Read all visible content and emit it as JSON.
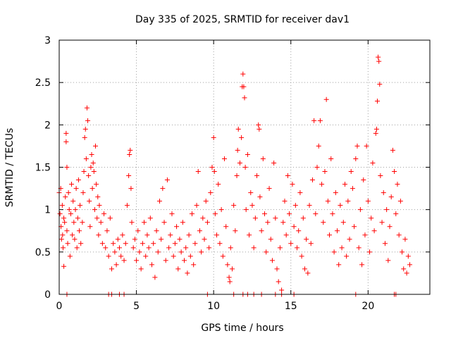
{
  "chart_data": {
    "type": "scatter",
    "title": "Day 335 of 2025, SRMTID for receiver dav1",
    "xlabel": "GPS time / hours",
    "ylabel": "SRMTID / TECUs",
    "xlim": [
      0,
      24
    ],
    "ylim": [
      0,
      3
    ],
    "x_ticks": [
      "0",
      "5",
      "10",
      "15",
      "20"
    ],
    "y_ticks": [
      "0",
      "0.5",
      "1",
      "1.5",
      "2",
      "2.5",
      "3"
    ],
    "grid": true,
    "marker": "+",
    "series_color": "#ff0000",
    "series": [
      {
        "name": "SRMTID",
        "points": [
          [
            0.0,
            1.2
          ],
          [
            0.05,
            0.95
          ],
          [
            0.1,
            1.25
          ],
          [
            0.12,
            0.8
          ],
          [
            0.15,
            0.65
          ],
          [
            0.2,
            1.05
          ],
          [
            0.22,
            0.7
          ],
          [
            0.25,
            0.55
          ],
          [
            0.3,
            0.9
          ],
          [
            0.3,
            0.33
          ],
          [
            0.35,
            0.85
          ],
          [
            0.4,
            1.15
          ],
          [
            0.45,
            1.9
          ],
          [
            0.45,
            1.8
          ],
          [
            0.5,
            1.5
          ],
          [
            0.5,
            0.75
          ],
          [
            0.55,
            0.6
          ],
          [
            0.6,
            1.2
          ],
          [
            0.65,
            1.0
          ],
          [
            0.7,
            0.45
          ],
          [
            0.75,
            0.95
          ],
          [
            0.8,
            1.3
          ],
          [
            0.85,
            0.7
          ],
          [
            0.9,
            1.1
          ],
          [
            0.95,
            0.85
          ],
          [
            1.0,
            0.65
          ],
          [
            1.05,
            1.0
          ],
          [
            1.1,
            1.25
          ],
          [
            1.15,
            0.55
          ],
          [
            1.2,
            0.9
          ],
          [
            1.25,
            1.35
          ],
          [
            1.3,
            0.75
          ],
          [
            1.35,
            1.05
          ],
          [
            1.4,
            0.6
          ],
          [
            1.5,
            0.85
          ],
          [
            1.55,
            1.2
          ],
          [
            1.6,
            1.45
          ],
          [
            1.65,
            1.85
          ],
          [
            1.7,
            1.95
          ],
          [
            1.75,
            1.6
          ],
          [
            1.8,
            2.2
          ],
          [
            1.85,
            2.05
          ],
          [
            1.9,
            1.4
          ],
          [
            1.95,
            1.1
          ],
          [
            2.0,
            0.8
          ],
          [
            2.05,
            1.5
          ],
          [
            2.1,
            1.65
          ],
          [
            2.15,
            1.25
          ],
          [
            2.2,
            1.55
          ],
          [
            2.25,
            1.45
          ],
          [
            2.3,
            1.0
          ],
          [
            2.35,
            1.75
          ],
          [
            2.4,
            1.3
          ],
          [
            2.45,
            0.9
          ],
          [
            2.5,
            1.15
          ],
          [
            2.55,
            0.7
          ],
          [
            2.6,
            1.05
          ],
          [
            2.7,
            0.85
          ],
          [
            2.8,
            0.6
          ],
          [
            2.9,
            0.95
          ],
          [
            3.0,
            0.55
          ],
          [
            3.1,
            0.75
          ],
          [
            3.2,
            0.45
          ],
          [
            3.3,
            0.9
          ],
          [
            3.4,
            0.3
          ],
          [
            3.5,
            0.6
          ],
          [
            3.6,
            0.5
          ],
          [
            3.7,
            0.35
          ],
          [
            3.8,
            0.65
          ],
          [
            3.9,
            0.55
          ],
          [
            4.0,
            0.45
          ],
          [
            4.1,
            0.7
          ],
          [
            4.2,
            0.4
          ],
          [
            4.3,
            0.6
          ],
          [
            4.4,
            1.05
          ],
          [
            4.5,
            1.4
          ],
          [
            4.55,
            1.65
          ],
          [
            4.6,
            1.7
          ],
          [
            4.65,
            1.25
          ],
          [
            4.7,
            0.85
          ],
          [
            4.8,
            0.55
          ],
          [
            4.9,
            0.65
          ],
          [
            5.0,
            0.4
          ],
          [
            5.1,
            0.75
          ],
          [
            5.2,
            0.5
          ],
          [
            5.3,
            0.3
          ],
          [
            5.4,
            0.6
          ],
          [
            5.5,
            0.85
          ],
          [
            5.6,
            0.45
          ],
          [
            5.7,
            0.7
          ],
          [
            5.8,
            0.55
          ],
          [
            5.9,
            0.9
          ],
          [
            6.0,
            0.35
          ],
          [
            6.1,
            0.6
          ],
          [
            6.2,
            0.2
          ],
          [
            6.3,
            0.75
          ],
          [
            6.4,
            0.5
          ],
          [
            6.5,
            1.1
          ],
          [
            6.6,
            0.65
          ],
          [
            6.7,
            1.25
          ],
          [
            6.8,
            0.85
          ],
          [
            6.9,
            0.4
          ],
          [
            7.0,
            1.35
          ],
          [
            7.1,
            0.55
          ],
          [
            7.2,
            0.7
          ],
          [
            7.3,
            0.95
          ],
          [
            7.4,
            0.45
          ],
          [
            7.5,
            0.6
          ],
          [
            7.6,
            0.8
          ],
          [
            7.7,
            0.3
          ],
          [
            7.8,
            0.65
          ],
          [
            7.9,
            0.5
          ],
          [
            8.0,
            0.85
          ],
          [
            8.1,
            0.4
          ],
          [
            8.2,
            0.55
          ],
          [
            8.3,
            0.25
          ],
          [
            8.4,
            0.7
          ],
          [
            8.5,
            0.45
          ],
          [
            8.6,
            0.95
          ],
          [
            8.7,
            0.35
          ],
          [
            8.8,
            0.6
          ],
          [
            8.9,
            1.05
          ],
          [
            9.0,
            1.45
          ],
          [
            9.1,
            0.75
          ],
          [
            9.2,
            0.5
          ],
          [
            9.3,
            0.9
          ],
          [
            9.4,
            0.65
          ],
          [
            9.5,
            1.1
          ],
          [
            9.6,
            0.85
          ],
          [
            9.7,
            0.55
          ],
          [
            9.8,
            1.2
          ],
          [
            9.9,
            1.5
          ],
          [
            10.0,
            1.85
          ],
          [
            10.05,
            1.45
          ],
          [
            10.1,
            0.95
          ],
          [
            10.2,
            0.7
          ],
          [
            10.3,
            1.3
          ],
          [
            10.4,
            0.6
          ],
          [
            10.5,
            1.0
          ],
          [
            10.6,
            0.45
          ],
          [
            10.7,
            1.6
          ],
          [
            10.8,
            0.8
          ],
          [
            10.9,
            0.35
          ],
          [
            11.0,
            0.2
          ],
          [
            11.05,
            0.15
          ],
          [
            11.1,
            0.55
          ],
          [
            11.2,
            0.3
          ],
          [
            11.3,
            1.05
          ],
          [
            11.4,
            0.75
          ],
          [
            11.5,
            1.4
          ],
          [
            11.55,
            1.7
          ],
          [
            11.6,
            1.95
          ],
          [
            11.7,
            1.55
          ],
          [
            11.8,
            1.85
          ],
          [
            11.85,
            2.45
          ],
          [
            11.9,
            2.6
          ],
          [
            11.95,
            2.45
          ],
          [
            12.0,
            2.32
          ],
          [
            12.05,
            1.5
          ],
          [
            12.1,
            1.0
          ],
          [
            12.2,
            1.65
          ],
          [
            12.3,
            0.7
          ],
          [
            12.4,
            1.2
          ],
          [
            12.5,
            1.05
          ],
          [
            12.6,
            0.55
          ],
          [
            12.7,
            0.9
          ],
          [
            12.8,
            1.4
          ],
          [
            12.9,
            2.0
          ],
          [
            12.95,
            1.95
          ],
          [
            13.0,
            1.15
          ],
          [
            13.1,
            0.75
          ],
          [
            13.2,
            1.6
          ],
          [
            13.3,
            0.95
          ],
          [
            13.4,
            0.5
          ],
          [
            13.5,
            0.85
          ],
          [
            13.6,
            1.25
          ],
          [
            13.7,
            0.65
          ],
          [
            13.8,
            0.4
          ],
          [
            13.9,
            1.55
          ],
          [
            14.0,
            0.9
          ],
          [
            14.1,
            0.3
          ],
          [
            14.2,
            0.15
          ],
          [
            14.3,
            0.55
          ],
          [
            14.4,
            0.05
          ],
          [
            14.5,
            0.85
          ],
          [
            14.6,
            1.1
          ],
          [
            14.7,
            0.7
          ],
          [
            14.8,
            1.4
          ],
          [
            14.9,
            0.95
          ],
          [
            15.0,
            0.6
          ],
          [
            15.1,
            1.3
          ],
          [
            15.2,
            0.8
          ],
          [
            15.3,
            1.05
          ],
          [
            15.4,
            0.55
          ],
          [
            15.5,
            0.75
          ],
          [
            15.6,
            1.2
          ],
          [
            15.7,
            0.45
          ],
          [
            15.8,
            0.9
          ],
          [
            15.9,
            0.3
          ],
          [
            16.0,
            0.65
          ],
          [
            16.1,
            0.25
          ],
          [
            16.2,
            1.05
          ],
          [
            16.3,
            0.6
          ],
          [
            16.4,
            1.35
          ],
          [
            16.5,
            2.05
          ],
          [
            16.6,
            0.95
          ],
          [
            16.7,
            1.5
          ],
          [
            16.8,
            1.75
          ],
          [
            16.9,
            2.05
          ],
          [
            17.0,
            1.3
          ],
          [
            17.1,
            0.85
          ],
          [
            17.2,
            1.45
          ],
          [
            17.3,
            2.3
          ],
          [
            17.4,
            1.1
          ],
          [
            17.5,
            0.7
          ],
          [
            17.6,
            1.6
          ],
          [
            17.7,
            0.95
          ],
          [
            17.8,
            0.5
          ],
          [
            17.9,
            1.2
          ],
          [
            18.0,
            0.75
          ],
          [
            18.1,
            0.35
          ],
          [
            18.2,
            1.05
          ],
          [
            18.3,
            0.55
          ],
          [
            18.4,
            0.85
          ],
          [
            18.5,
            1.3
          ],
          [
            18.6,
            0.45
          ],
          [
            18.7,
            1.1
          ],
          [
            18.8,
            0.65
          ],
          [
            18.9,
            1.45
          ],
          [
            19.0,
            1.25
          ],
          [
            19.1,
            0.8
          ],
          [
            19.2,
            1.6
          ],
          [
            19.3,
            1.75
          ],
          [
            19.4,
            0.55
          ],
          [
            19.5,
            1.0
          ],
          [
            19.6,
            0.35
          ],
          [
            19.7,
            1.35
          ],
          [
            19.8,
            0.7
          ],
          [
            19.9,
            1.75
          ],
          [
            20.0,
            1.1
          ],
          [
            20.1,
            0.5
          ],
          [
            20.2,
            0.9
          ],
          [
            20.3,
            1.55
          ],
          [
            20.4,
            0.75
          ],
          [
            20.5,
            1.9
          ],
          [
            20.55,
            1.95
          ],
          [
            20.6,
            2.28
          ],
          [
            20.65,
            2.8
          ],
          [
            20.7,
            2.75
          ],
          [
            20.75,
            2.48
          ],
          [
            20.8,
            1.4
          ],
          [
            20.9,
            0.85
          ],
          [
            21.0,
            1.2
          ],
          [
            21.1,
            0.6
          ],
          [
            21.2,
            1.0
          ],
          [
            21.3,
            0.4
          ],
          [
            21.4,
            0.8
          ],
          [
            21.5,
            1.15
          ],
          [
            21.6,
            1.7
          ],
          [
            21.7,
            1.45
          ],
          [
            21.8,
            0.95
          ],
          [
            21.9,
            1.3
          ],
          [
            22.0,
            0.7
          ],
          [
            22.1,
            1.1
          ],
          [
            22.2,
            0.5
          ],
          [
            22.3,
            0.3
          ],
          [
            22.4,
            0.65
          ],
          [
            22.5,
            0.25
          ],
          [
            22.6,
            0.45
          ],
          [
            22.7,
            0.35
          ]
        ],
        "zero_markers": [
          0.5,
          3.2,
          3.4,
          3.9,
          4.2,
          9.6,
          11.3,
          11.9,
          12.2,
          12.6,
          13.1,
          14.0,
          14.4,
          15.2,
          19.2,
          21.7,
          21.8
        ]
      }
    ]
  }
}
